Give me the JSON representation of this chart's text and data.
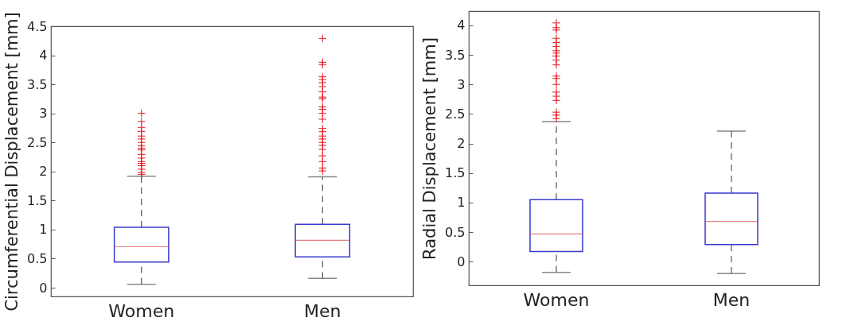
{
  "chart_data": [
    {
      "type": "box",
      "categories": [
        "Women",
        "Men"
      ],
      "ylabel": "Circumferential Displacement [mm]",
      "ylim": [
        -0.15,
        4.5
      ],
      "yticks": [
        0,
        0.5,
        1,
        1.5,
        2,
        2.5,
        3,
        3.5,
        4,
        4.5
      ],
      "grid": false,
      "marker": "cross",
      "boxes": [
        {
          "low": 0.06,
          "q1": 0.44,
          "median": 0.705,
          "q3": 1.04,
          "high": 1.92,
          "outliers": [
            3.0,
            2.86,
            2.76,
            2.69,
            2.61,
            2.56,
            2.5,
            2.44,
            2.4,
            2.37,
            2.29,
            2.23,
            2.17,
            2.14,
            2.1,
            2.04,
            1.98,
            1.95
          ]
        },
        {
          "low": 0.16,
          "q1": 0.53,
          "median": 0.815,
          "q3": 1.09,
          "high": 1.91,
          "outliers": [
            4.29,
            3.88,
            3.84,
            3.63,
            3.58,
            3.53,
            3.46,
            3.37,
            3.28,
            3.25,
            3.11,
            3.07,
            3.0,
            2.9,
            2.74,
            2.69,
            2.61,
            2.56,
            2.5,
            2.45,
            2.38,
            2.27,
            2.17,
            2.06,
            2.01
          ]
        }
      ]
    },
    {
      "type": "box",
      "categories": [
        "Women",
        "Men"
      ],
      "ylabel": "Radial Displacement [mm]",
      "ylim": [
        -0.4,
        4.24
      ],
      "yticks": [
        0,
        0.5,
        1,
        1.5,
        2,
        2.5,
        3,
        3.5,
        4
      ],
      "grid": false,
      "marker": "cross",
      "boxes": [
        {
          "low": -0.18,
          "q1": 0.17,
          "median": 0.47,
          "q3": 1.05,
          "high": 2.37,
          "outliers": [
            4.04,
            3.96,
            3.92,
            3.78,
            3.71,
            3.64,
            3.57,
            3.53,
            3.48,
            3.41,
            3.33,
            3.14,
            3.1,
            3.0,
            2.87,
            2.8,
            2.73,
            2.53,
            2.48,
            2.42
          ]
        },
        {
          "low": -0.2,
          "q1": 0.29,
          "median": 0.68,
          "q3": 1.16,
          "high": 2.21
        }
      ]
    }
  ]
}
